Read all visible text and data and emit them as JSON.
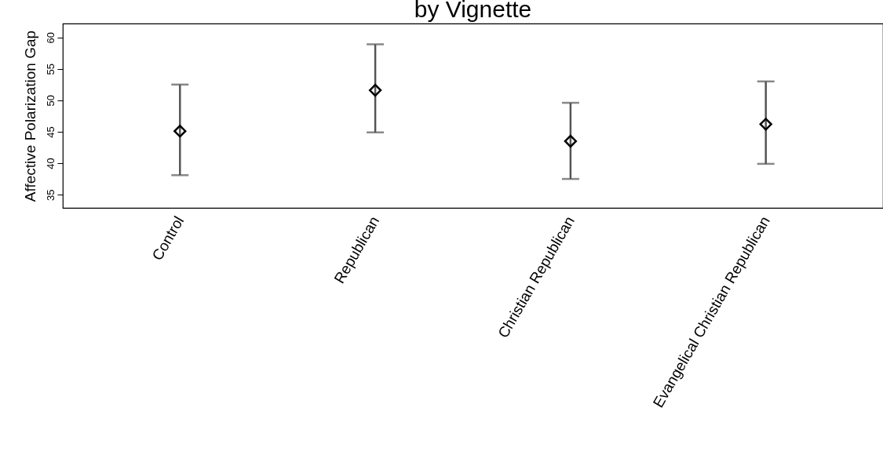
{
  "chart_data": {
    "type": "scatter",
    "title": "by Vignette",
    "ylabel": "Affective Polarization Gap",
    "categories": [
      "Control",
      "Republican",
      "Christian Republican",
      "Evangelical Christian Republican"
    ],
    "series": [
      {
        "color": "#000000",
        "values": [
          45.1,
          51.6,
          43.5,
          46.2
        ],
        "errors": [
          [
            38.1,
            52.5
          ],
          [
            44.9,
            58.9
          ],
          [
            37.5,
            49.6
          ],
          [
            39.9,
            53.0
          ]
        ]
      }
    ],
    "ylim": [
      32.9,
      62.2
    ],
    "yticks": [
      35,
      40,
      45,
      50,
      55,
      60
    ],
    "marker": "diamond",
    "grid": false,
    "legend": false
  }
}
